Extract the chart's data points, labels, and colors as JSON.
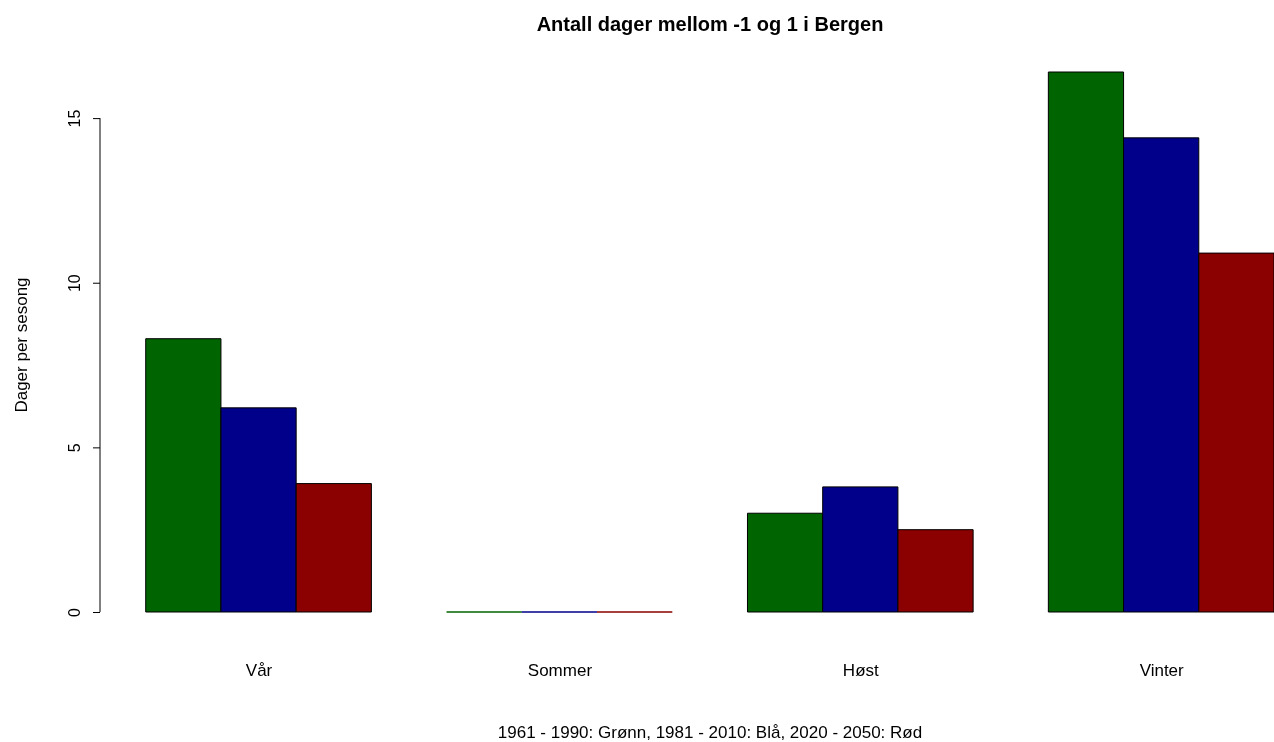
{
  "chart_data": {
    "type": "bar",
    "title": "Antall dager mellom -1 og 1 i Bergen",
    "xlabel": "1961 - 1990: Grønn, 1981 - 2010: Blå, 2020 - 2050: Rød",
    "ylabel": "Dager per sesong",
    "categories": [
      "Vår",
      "Sommer",
      "Høst",
      "Vinter"
    ],
    "series": [
      {
        "color": "#006400",
        "values": [
          8.3,
          0,
          3.0,
          16.4
        ]
      },
      {
        "color": "#00008b",
        "values": [
          6.2,
          0,
          3.8,
          14.4
        ]
      },
      {
        "color": "#8b0000",
        "values": [
          3.9,
          0,
          2.5,
          10.9
        ]
      }
    ],
    "ylim": [
      0,
      16.4
    ],
    "yticks": [
      0,
      5,
      10,
      15
    ],
    "grid": false
  }
}
